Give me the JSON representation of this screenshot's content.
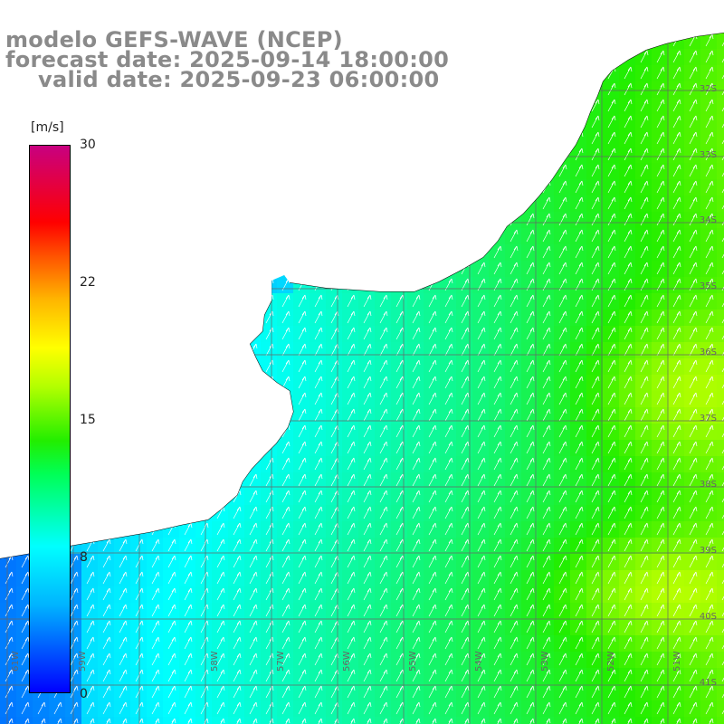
{
  "title": {
    "line1": "modelo GEFS-WAVE (NCEP)",
    "line2": "forecast date: 2025-09-14 18:00:00",
    "line3": "valid date: 2025-09-23 06:00:00"
  },
  "colorbar": {
    "unit": "[m/s]",
    "ticks": [
      "30",
      "22",
      "15",
      "8",
      "0"
    ],
    "min": 0,
    "max": 30,
    "colors": [
      "#0000ff",
      "#00ffff",
      "#22ee00",
      "#ffff00",
      "#ff0000",
      "#c80080"
    ]
  },
  "latitude_labels": [
    "32S",
    "33S",
    "34S",
    "35S",
    "36S",
    "37S",
    "38S",
    "39S",
    "40S",
    "41S"
  ],
  "longitude_labels": [
    "61W",
    "59W",
    "58W",
    "57W",
    "56W",
    "55W",
    "54W",
    "53W",
    "52W",
    "51W"
  ],
  "colors": {
    "land": "#ffffff",
    "grid": "#000000",
    "coast": "#000000",
    "arrows": "#ffffff",
    "title": "#8a8a8a"
  }
}
